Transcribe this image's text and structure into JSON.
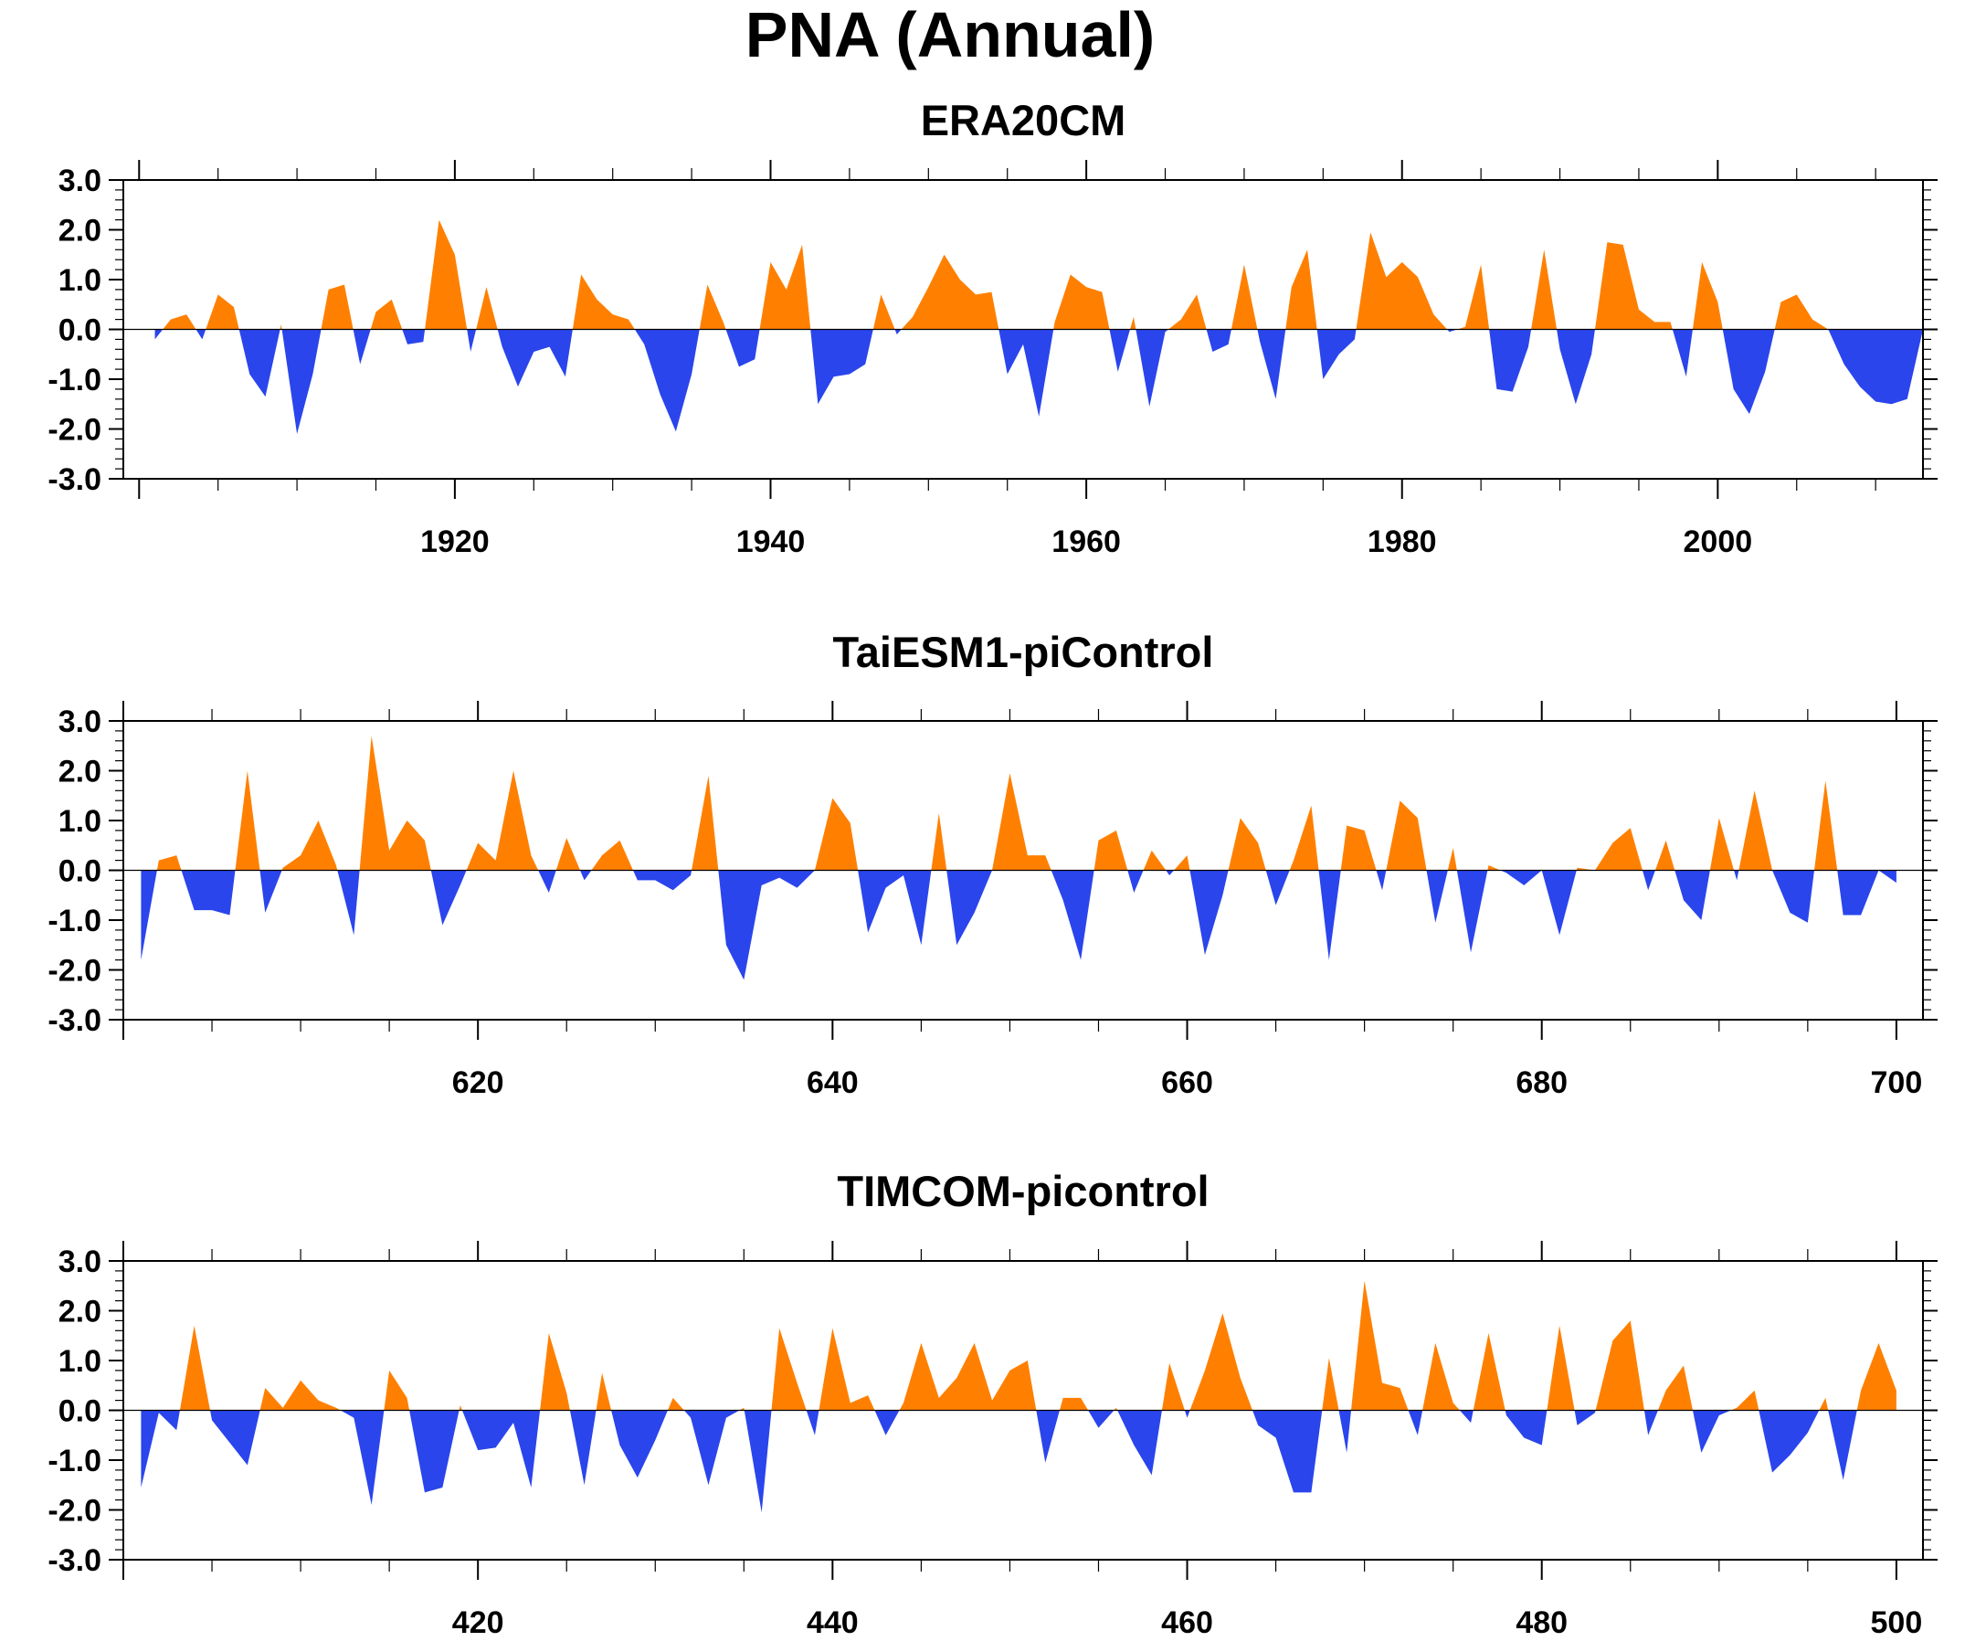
{
  "figure": {
    "title": "PNA (Annual)",
    "colors": {
      "positive": "#ff8000",
      "negative": "#2a45ec",
      "axis": "#000000"
    }
  },
  "chart_data": [
    {
      "type": "area",
      "title": "ERA20CM",
      "xlabel": "",
      "ylabel": "",
      "xlim": [
        1901,
        2010
      ],
      "ylim": [
        -3,
        3
      ],
      "x_ticks": [
        1920,
        1940,
        1960,
        1980,
        2000
      ],
      "y_ticks": [
        "3.0",
        "2.0",
        "1.0",
        "0.0",
        "-1.0",
        "-2.0",
        "-3.0"
      ],
      "fill_above_zero": "#ff8000",
      "fill_below_zero": "#2a45ec",
      "grid": false,
      "x_start": 1901,
      "values": [
        -0.2,
        0.2,
        0.3,
        -0.2,
        0.7,
        0.45,
        -0.9,
        -1.35,
        0.1,
        -2.1,
        -0.9,
        0.8,
        0.9,
        -0.7,
        0.35,
        0.6,
        -0.3,
        -0.25,
        2.2,
        1.5,
        -0.45,
        0.85,
        -0.35,
        -1.15,
        -0.45,
        -0.35,
        -0.95,
        1.1,
        0.6,
        0.3,
        0.2,
        -0.3,
        -1.3,
        -2.05,
        -0.9,
        0.9,
        0.15,
        -0.75,
        -0.6,
        1.35,
        0.8,
        1.7,
        -1.5,
        -0.95,
        -0.9,
        -0.7,
        0.7,
        -0.1,
        0.25,
        0.85,
        1.5,
        1.0,
        0.7,
        0.75,
        -0.9,
        -0.3,
        -1.75,
        0.15,
        1.1,
        0.85,
        0.75,
        -0.85,
        0.25,
        -1.55,
        -0.05,
        0.2,
        0.7,
        -0.45,
        -0.3,
        1.3,
        -0.25,
        -1.4,
        0.85,
        1.6,
        -1.0,
        -0.5,
        -0.2,
        1.95,
        1.05,
        1.35,
        1.05,
        0.3,
        -0.05,
        0.05,
        1.3,
        -1.2,
        -1.25,
        -0.35,
        1.6,
        -0.4,
        -1.5,
        -0.5,
        1.75,
        1.7,
        0.4,
        0.15,
        0.15,
        -0.95,
        1.35,
        0.55,
        -1.2,
        -1.7,
        -0.85,
        0.55,
        0.7,
        0.2,
        0.0,
        -0.7,
        -1.15,
        -1.45,
        -1.5,
        -1.4,
        0.0
      ]
    },
    {
      "type": "area",
      "title": "TaiESM1-piControl",
      "xlabel": "",
      "ylabel": "",
      "xlim": [
        601,
        700
      ],
      "ylim": [
        -3,
        3
      ],
      "x_ticks": [
        620,
        640,
        660,
        680,
        700
      ],
      "y_ticks": [
        "3.0",
        "2.0",
        "1.0",
        "0.0",
        "-1.0",
        "-2.0",
        "-3.0"
      ],
      "fill_above_zero": "#ff8000",
      "fill_below_zero": "#2a45ec",
      "grid": false,
      "x_start": 601,
      "values": [
        -1.8,
        0.2,
        0.3,
        -0.8,
        -0.8,
        -0.9,
        2.0,
        -0.85,
        0.05,
        0.3,
        1.0,
        0.1,
        -1.3,
        2.7,
        0.4,
        1.0,
        0.6,
        -1.1,
        -0.3,
        0.55,
        0.2,
        2.0,
        0.3,
        -0.45,
        0.65,
        -0.2,
        0.3,
        0.6,
        -0.2,
        -0.2,
        -0.4,
        -0.1,
        1.9,
        -1.5,
        -2.2,
        -0.3,
        -0.15,
        -0.35,
        0.0,
        1.45,
        0.95,
        -1.25,
        -0.35,
        -0.1,
        -1.5,
        1.15,
        -1.5,
        -0.85,
        0.0,
        1.95,
        0.3,
        0.3,
        -0.6,
        -1.8,
        0.6,
        0.8,
        -0.45,
        0.4,
        -0.1,
        0.3,
        -1.7,
        -0.5,
        1.05,
        0.55,
        -0.7,
        0.2,
        1.3,
        -1.8,
        0.9,
        0.8,
        -0.4,
        1.4,
        1.05,
        -1.05,
        0.45,
        -1.65,
        0.1,
        -0.05,
        -0.3,
        0.0,
        -1.3,
        0.05,
        0.0,
        0.55,
        0.85,
        -0.4,
        0.6,
        -0.6,
        -1.0,
        1.05,
        -0.2,
        1.6,
        0.0,
        -0.85,
        -1.05,
        1.8,
        -0.9,
        -0.9,
        0.0,
        -0.25
      ]
    },
    {
      "type": "area",
      "title": "TIMCOM-picontrol",
      "xlabel": "",
      "ylabel": "",
      "xlim": [
        401,
        500
      ],
      "ylim": [
        -3,
        3
      ],
      "x_ticks": [
        420,
        440,
        460,
        480,
        500
      ],
      "y_ticks": [
        "3.0",
        "2.0",
        "1.0",
        "0.0",
        "-1.0",
        "-2.0",
        "-3.0"
      ],
      "fill_above_zero": "#ff8000",
      "fill_below_zero": "#2a45ec",
      "grid": false,
      "x_start": 401,
      "values": [
        -1.55,
        -0.05,
        -0.4,
        1.7,
        -0.2,
        -0.65,
        -1.1,
        0.45,
        0.05,
        0.6,
        0.2,
        0.05,
        -0.15,
        -1.9,
        0.8,
        0.25,
        -1.65,
        -1.55,
        0.1,
        -0.8,
        -0.75,
        -0.25,
        -1.55,
        1.55,
        0.35,
        -1.5,
        0.75,
        -0.7,
        -1.35,
        -0.6,
        0.25,
        -0.15,
        -1.5,
        -0.15,
        0.05,
        -2.05,
        1.65,
        0.55,
        -0.5,
        1.65,
        0.15,
        0.3,
        -0.5,
        0.15,
        1.35,
        0.25,
        0.65,
        1.35,
        0.2,
        0.8,
        1.0,
        -1.05,
        0.25,
        0.25,
        -0.35,
        0.05,
        -0.7,
        -1.3,
        0.95,
        -0.15,
        0.8,
        1.95,
        0.65,
        -0.3,
        -0.55,
        -1.65,
        -1.65,
        1.05,
        -0.85,
        2.6,
        0.55,
        0.45,
        -0.5,
        1.35,
        0.15,
        -0.25,
        1.55,
        -0.1,
        -0.55,
        -0.7,
        1.7,
        -0.3,
        -0.05,
        1.4,
        1.8,
        -0.5,
        0.4,
        0.9,
        -0.85,
        -0.1,
        0.05,
        0.4,
        -1.25,
        -0.9,
        -0.45,
        0.25,
        -1.4,
        0.4,
        1.35,
        0.4
      ]
    }
  ]
}
